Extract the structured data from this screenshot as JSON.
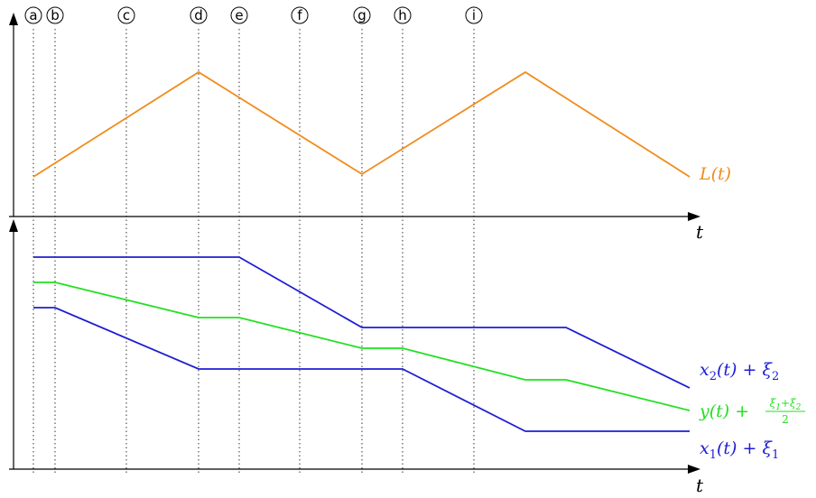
{
  "markers": [
    {
      "id": "a",
      "label": "a"
    },
    {
      "id": "b",
      "label": "b"
    },
    {
      "id": "c",
      "label": "c"
    },
    {
      "id": "d",
      "label": "d"
    },
    {
      "id": "e",
      "label": "e"
    },
    {
      "id": "f",
      "label": "f"
    },
    {
      "id": "g",
      "label": "g"
    },
    {
      "id": "h",
      "label": "h"
    },
    {
      "id": "i",
      "label": "i"
    }
  ],
  "axes": {
    "top_x_label": "t",
    "bottom_x_label": "t"
  },
  "curves": {
    "L": {
      "label": "L(t)",
      "color": "#f08c1e"
    },
    "x2": {
      "label_main": "x",
      "label_sub": "2",
      "label_rest": "(t) + ξ",
      "label_sub2": "2",
      "color": "#1e1ed2"
    },
    "y": {
      "label_main": "y(t) + ",
      "frac_num_a": "ξ",
      "frac_num_a_sub": "1",
      "frac_num_plus": "+ξ",
      "frac_num_b_sub": "2",
      "frac_den": "2",
      "color": "#21e021"
    },
    "x1": {
      "label_main": "x",
      "label_sub": "1",
      "label_rest": "(t) + ξ",
      "label_sub2": "1",
      "color": "#1e1ed2"
    }
  }
}
